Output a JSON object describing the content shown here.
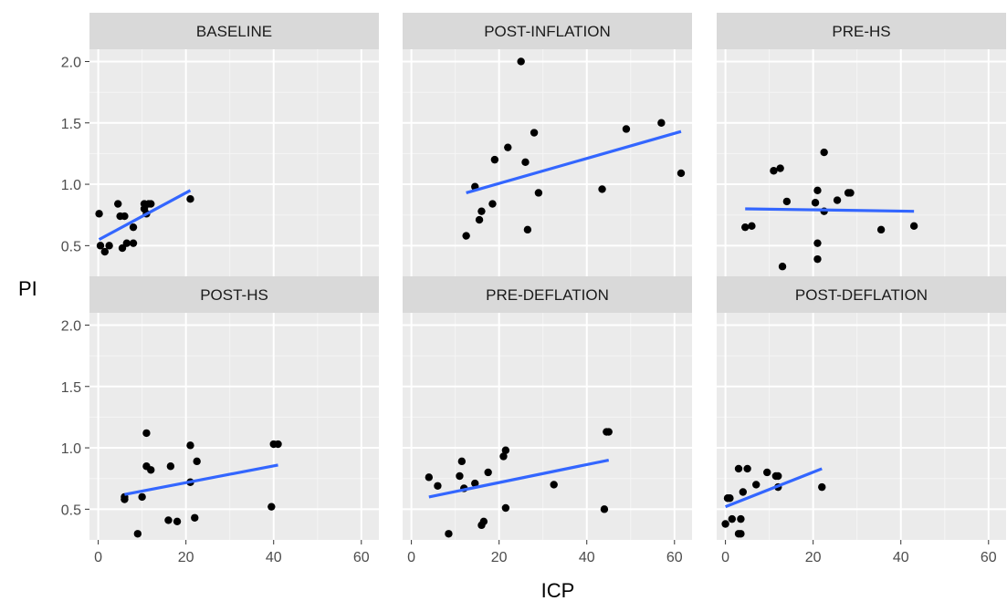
{
  "colors": {
    "panel_background": "#ebebeb",
    "strip_background": "#d9d9d9",
    "grid_major": "#ffffff",
    "grid_minor": "#f5f5f5",
    "point": "#000000",
    "fit_line": "#3366ff",
    "tick_text": "#4d4d4d"
  },
  "chart_data": {
    "type": "scatter",
    "facets": true,
    "xlabel": "ICP",
    "ylabel": "PI",
    "xlim": [
      -2,
      64
    ],
    "ylim": [
      0.25,
      2.1
    ],
    "x_ticks": [
      0,
      20,
      40,
      60
    ],
    "x_tick_labels": [
      "0",
      "20",
      "40",
      "60"
    ],
    "y_ticks": [
      0.5,
      1.0,
      1.5,
      2.0
    ],
    "y_tick_labels": [
      "0.5",
      "1.0",
      "1.5",
      "2.0"
    ],
    "grid": true,
    "fit": "linear regression line per panel",
    "panels": [
      {
        "name": "BASELINE",
        "points": [
          [
            0.2,
            0.76
          ],
          [
            0.5,
            0.5
          ],
          [
            1.5,
            0.45
          ],
          [
            2.5,
            0.5
          ],
          [
            4.5,
            0.84
          ],
          [
            5,
            0.74
          ],
          [
            5.5,
            0.48
          ],
          [
            6,
            0.74
          ],
          [
            6.5,
            0.52
          ],
          [
            8,
            0.52
          ],
          [
            8,
            0.65
          ],
          [
            10.5,
            0.84
          ],
          [
            10.5,
            0.8
          ],
          [
            11,
            0.76
          ],
          [
            11.5,
            0.84
          ],
          [
            12,
            0.84
          ],
          [
            21,
            0.88
          ]
        ],
        "fit": [
          [
            0.2,
            0.55
          ],
          [
            21,
            0.95
          ]
        ]
      },
      {
        "name": "POST-INFLATION",
        "points": [
          [
            12.5,
            0.58
          ],
          [
            14.5,
            0.98
          ],
          [
            15.5,
            0.71
          ],
          [
            16,
            0.78
          ],
          [
            18.5,
            0.84
          ],
          [
            19,
            1.2
          ],
          [
            22,
            1.3
          ],
          [
            25,
            2.0
          ],
          [
            26,
            1.18
          ],
          [
            26.5,
            0.63
          ],
          [
            28,
            1.42
          ],
          [
            29,
            0.93
          ],
          [
            43.5,
            0.96
          ],
          [
            49,
            1.45
          ],
          [
            57,
            1.5
          ],
          [
            61.5,
            1.09
          ]
        ],
        "fit": [
          [
            12.5,
            0.93
          ],
          [
            61.5,
            1.43
          ]
        ]
      },
      {
        "name": "PRE-HS",
        "points": [
          [
            4.5,
            0.65
          ],
          [
            6,
            0.66
          ],
          [
            11,
            1.11
          ],
          [
            12.5,
            1.13
          ],
          [
            13,
            0.33
          ],
          [
            14,
            0.86
          ],
          [
            20.5,
            0.85
          ],
          [
            21,
            0.95
          ],
          [
            21,
            0.52
          ],
          [
            21,
            0.39
          ],
          [
            22.5,
            1.26
          ],
          [
            22.5,
            0.78
          ],
          [
            25.5,
            0.87
          ],
          [
            28,
            0.93
          ],
          [
            28.5,
            0.93
          ],
          [
            35.5,
            0.63
          ],
          [
            43,
            0.66
          ]
        ],
        "fit": [
          [
            4.5,
            0.8
          ],
          [
            43,
            0.78
          ]
        ]
      },
      {
        "name": "POST-HS",
        "points": [
          [
            6,
            0.58
          ],
          [
            6,
            0.6
          ],
          [
            9,
            0.3
          ],
          [
            10,
            0.6
          ],
          [
            11,
            1.12
          ],
          [
            11,
            0.85
          ],
          [
            12,
            0.82
          ],
          [
            16,
            0.41
          ],
          [
            16.5,
            0.85
          ],
          [
            18,
            0.4
          ],
          [
            21,
            1.02
          ],
          [
            21,
            0.72
          ],
          [
            22,
            0.43
          ],
          [
            22.5,
            0.89
          ],
          [
            39.5,
            0.52
          ],
          [
            40,
            1.03
          ],
          [
            41,
            1.03
          ]
        ],
        "fit": [
          [
            6,
            0.62
          ],
          [
            41,
            0.86
          ]
        ]
      },
      {
        "name": "PRE-DEFLATION",
        "points": [
          [
            4,
            0.76
          ],
          [
            6,
            0.69
          ],
          [
            8.5,
            0.3
          ],
          [
            11,
            0.77
          ],
          [
            11.5,
            0.89
          ],
          [
            12,
            0.67
          ],
          [
            14.5,
            0.71
          ],
          [
            16,
            0.37
          ],
          [
            16.5,
            0.4
          ],
          [
            17.5,
            0.8
          ],
          [
            21,
            0.93
          ],
          [
            21.5,
            0.98
          ],
          [
            21.5,
            0.51
          ],
          [
            32.5,
            0.7
          ],
          [
            44,
            0.5
          ],
          [
            44.5,
            1.13
          ],
          [
            45,
            1.13
          ]
        ],
        "fit": [
          [
            4,
            0.6
          ],
          [
            45,
            0.9
          ]
        ]
      },
      {
        "name": "POST-DEFLATION",
        "points": [
          [
            0,
            0.38
          ],
          [
            0.5,
            0.59
          ],
          [
            1,
            0.59
          ],
          [
            1.5,
            0.42
          ],
          [
            3,
            0.3
          ],
          [
            3,
            0.83
          ],
          [
            3.5,
            0.3
          ],
          [
            3.5,
            0.42
          ],
          [
            4,
            0.64
          ],
          [
            5,
            0.83
          ],
          [
            7,
            0.7
          ],
          [
            9.5,
            0.8
          ],
          [
            11.5,
            0.77
          ],
          [
            12,
            0.77
          ],
          [
            12,
            0.68
          ],
          [
            22,
            0.68
          ]
        ],
        "fit": [
          [
            0,
            0.52
          ],
          [
            22,
            0.83
          ]
        ]
      }
    ]
  }
}
